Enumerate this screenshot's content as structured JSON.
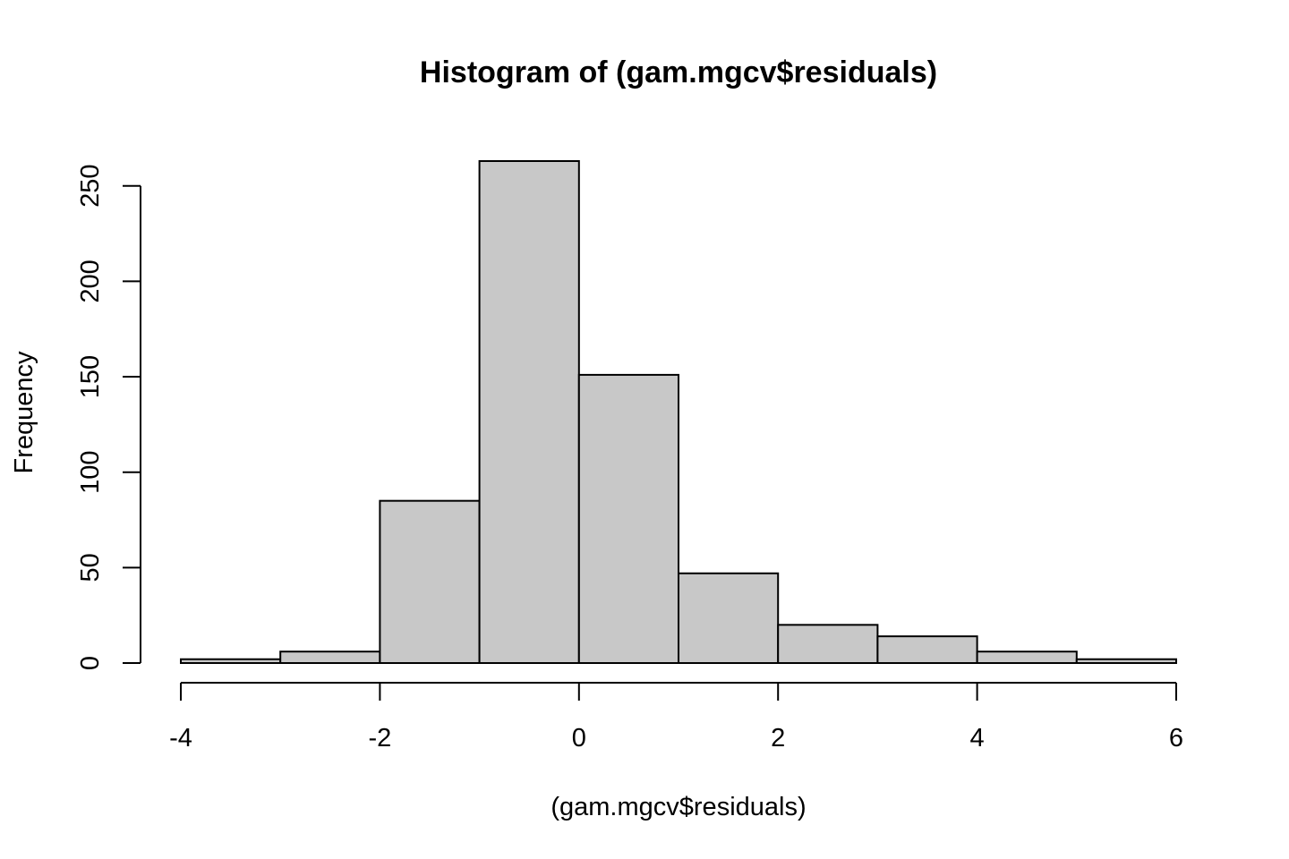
{
  "chart_data": {
    "type": "bar",
    "title": "Histogram of (gam.mgcv$residuals)",
    "xlabel": "(gam.mgcv$residuals)",
    "ylabel": "Frequency",
    "bin_edges": [
      -4,
      -3,
      -2,
      -1,
      0,
      1,
      2,
      3,
      4,
      5,
      6
    ],
    "values": [
      2,
      6,
      85,
      263,
      151,
      47,
      20,
      14,
      6,
      2
    ],
    "xlim": [
      -4,
      6
    ],
    "ylim": [
      0,
      263
    ],
    "x_ticks": [
      "-4",
      "-2",
      "0",
      "2",
      "4",
      "6"
    ],
    "y_ticks": [
      "0",
      "50",
      "100",
      "150",
      "200",
      "250"
    ],
    "bar_fill": "#c8c8c8",
    "grid": false
  }
}
